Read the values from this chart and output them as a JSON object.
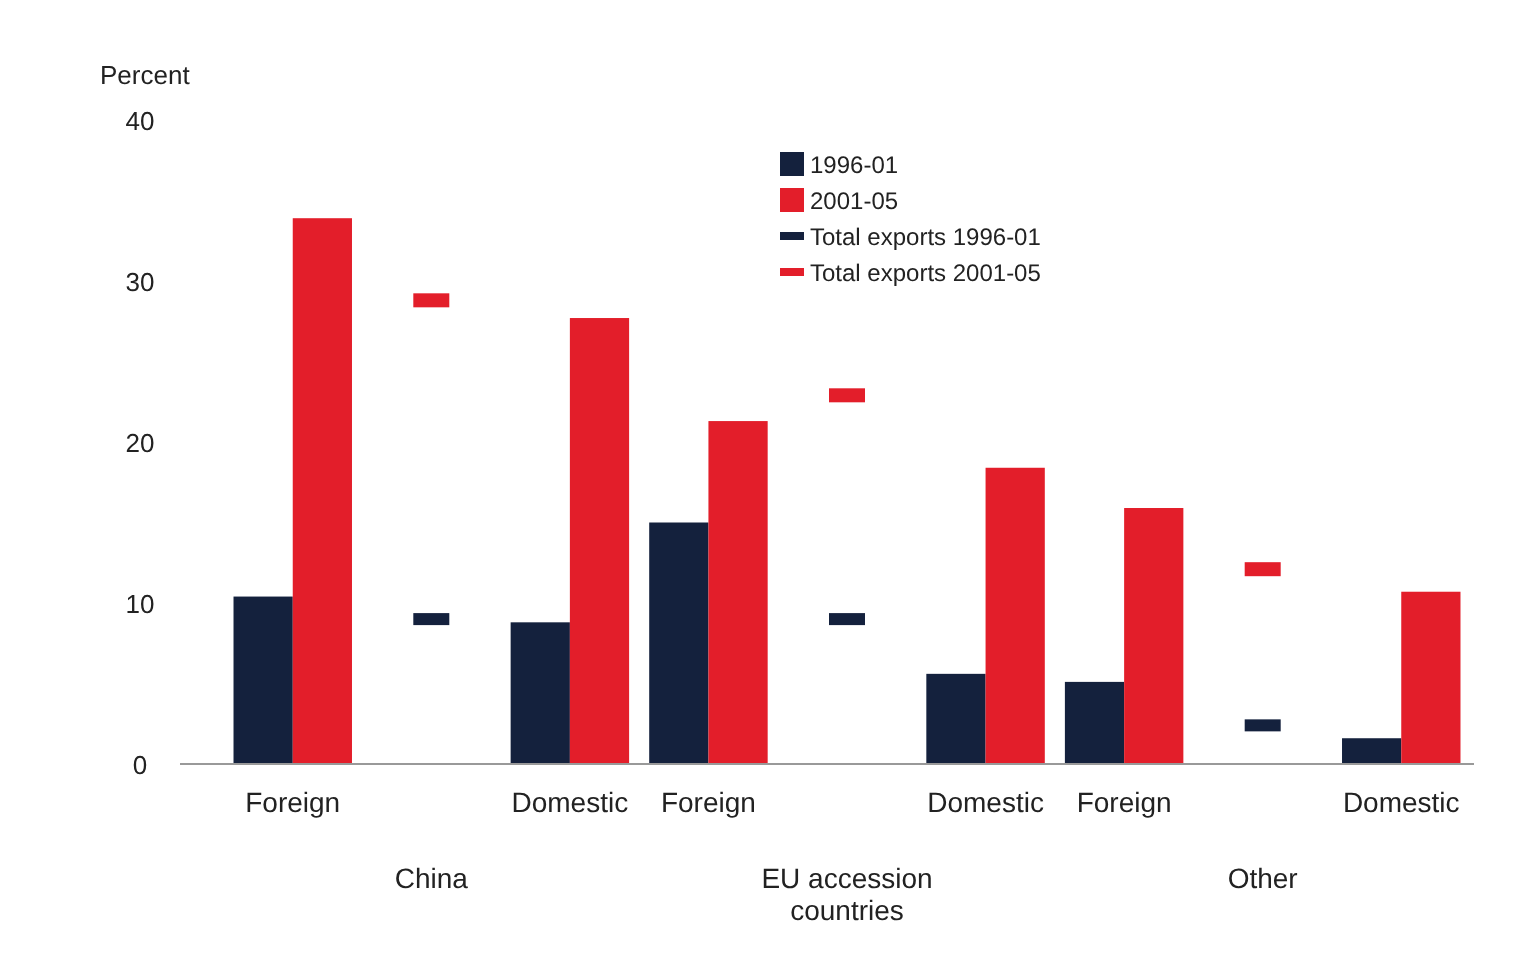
{
  "chart_data": {
    "type": "bar",
    "ylabel": "Percent",
    "categories": [
      "Foreign",
      null,
      "Domestic",
      "Foreign",
      null,
      "Domestic",
      "Foreign",
      null,
      "Domestic"
    ],
    "series": [
      {
        "name": "1996-01",
        "color": "#14213d",
        "values": [
          10.4,
          null,
          8.8,
          15.0,
          null,
          5.6,
          5.1,
          null,
          1.6
        ]
      },
      {
        "name": "2001-05",
        "color": "#e31e2a",
        "values": [
          33.9,
          null,
          27.7,
          21.3,
          null,
          18.4,
          15.9,
          null,
          10.7
        ]
      },
      {
        "name": "Total exports 1996-01",
        "type": "scatter",
        "color": "#14213d",
        "values": [
          null,
          9.0,
          null,
          null,
          9.0,
          null,
          null,
          2.4,
          null
        ]
      },
      {
        "name": "Total exports 2001-05",
        "type": "scatter",
        "color": "#e31e2a",
        "values": [
          null,
          28.8,
          null,
          null,
          22.9,
          null,
          null,
          12.1,
          null
        ]
      }
    ],
    "annotations": [
      "China",
      "EU accession countries",
      "Other"
    ],
    "ylim": [
      0,
      40
    ],
    "yticks": [
      0,
      10,
      20,
      30,
      40
    ],
    "grid": false,
    "legend": "top"
  }
}
